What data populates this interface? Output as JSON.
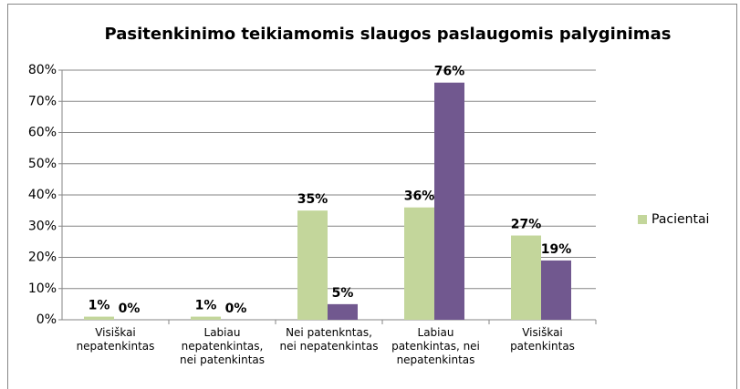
{
  "chart_data": {
    "type": "bar",
    "title": "Pasitenkinimo teikiamomis slaugos paslaugomis palyginimas",
    "categories": [
      "Visiškai nepatenkintas",
      "Labiau nepatenkintas, nei patenkintas",
      "Nei patenknta​s, nei nepatenkintas",
      "Labiau patenkintas, nei nepatenkintas",
      "Visiškai patenkintas"
    ],
    "series": [
      {
        "name": "Pacientai",
        "color": "#c3d69b",
        "values": [
          1,
          1,
          35,
          36,
          27
        ],
        "value_labels": [
          "1%",
          "1%",
          "35%",
          "36%",
          "27%"
        ]
      },
      {
        "color": "#71588f",
        "values": [
          0,
          0,
          5,
          76,
          19
        ],
        "value_labels": [
          "0%",
          "0%",
          "5%",
          "76%",
          "19%"
        ]
      }
    ],
    "ylim": [
      0,
      80
    ],
    "yticks": [
      {
        "value": 0,
        "label": "0%"
      },
      {
        "value": 10,
        "label": "10%"
      },
      {
        "value": 20,
        "label": "20%"
      },
      {
        "value": 30,
        "label": "30%"
      },
      {
        "value": 40,
        "label": "40%"
      },
      {
        "value": 50,
        "label": "50%"
      },
      {
        "value": 60,
        "label": "60%"
      },
      {
        "value": 70,
        "label": "70%"
      },
      {
        "value": 80,
        "label": "80%"
      }
    ],
    "grid": true,
    "legend": "right"
  }
}
